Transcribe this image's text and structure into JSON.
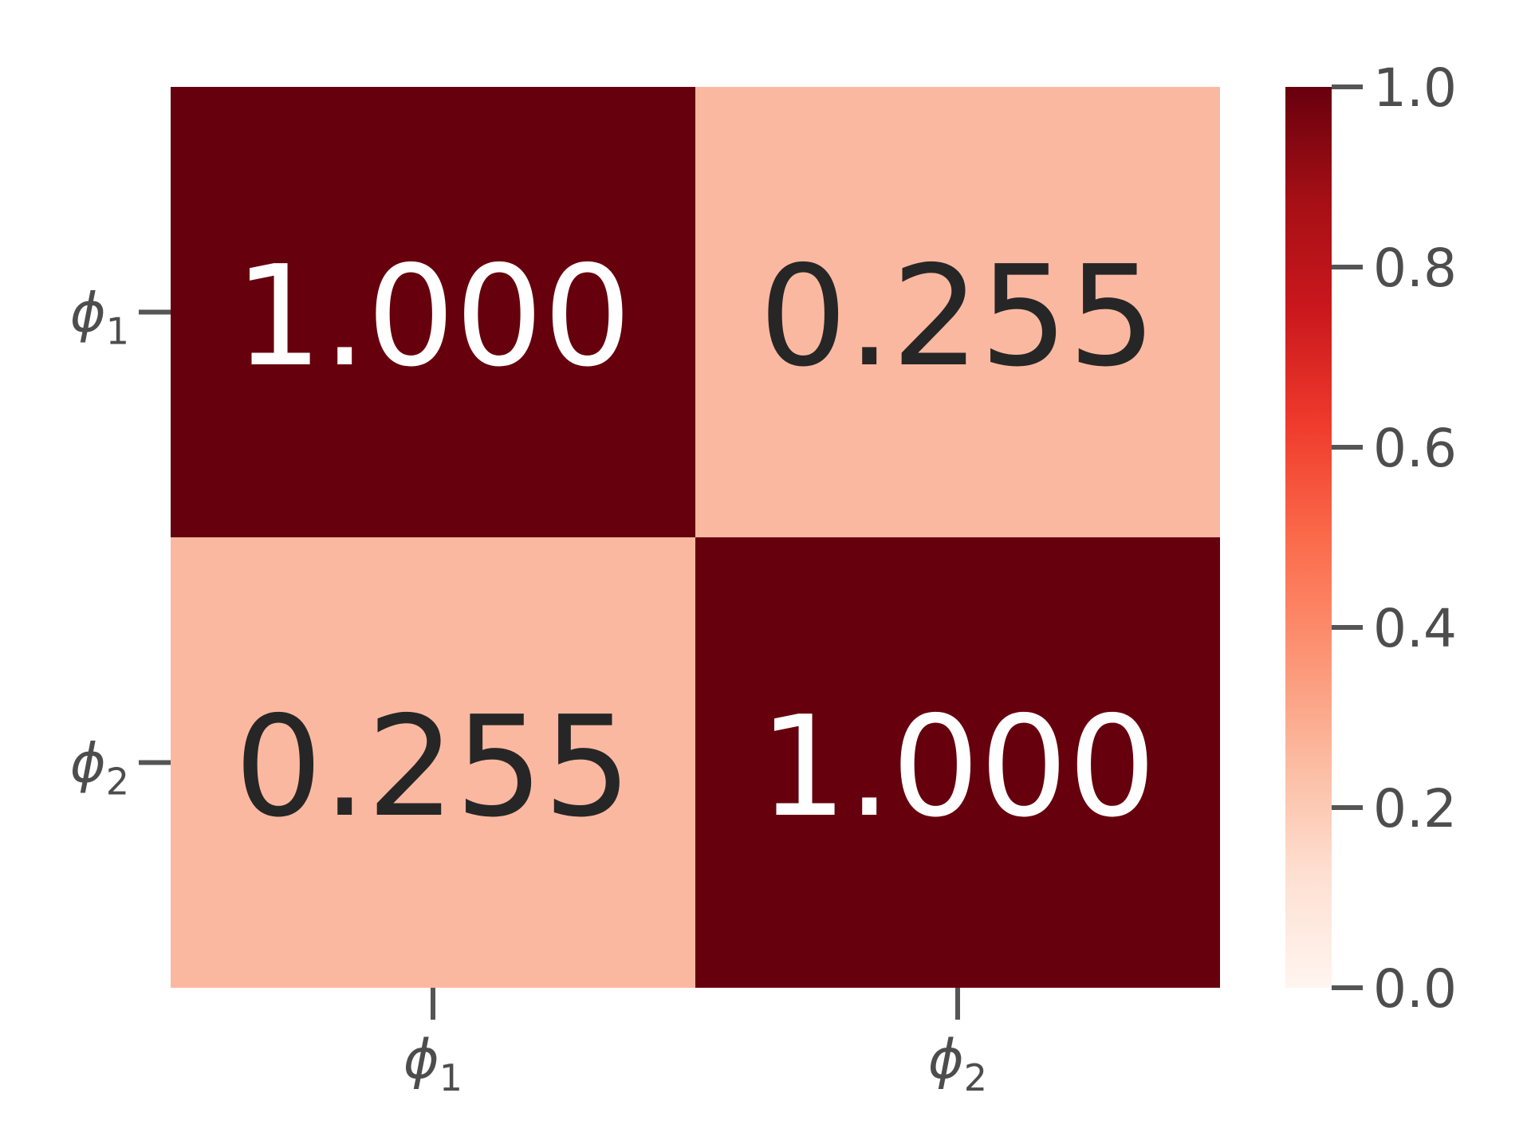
{
  "chart_data": {
    "type": "heatmap",
    "title": "",
    "rows": [
      {
        "symbol": "ϕ",
        "subscript": "1"
      },
      {
        "symbol": "ϕ",
        "subscript": "2"
      }
    ],
    "columns": [
      {
        "symbol": "ϕ",
        "subscript": "1"
      },
      {
        "symbol": "ϕ",
        "subscript": "2"
      }
    ],
    "values": [
      [
        1.0,
        0.255
      ],
      [
        0.255,
        1.0
      ]
    ],
    "value_labels": [
      [
        "1.000",
        "0.255"
      ],
      [
        "0.255",
        "1.000"
      ]
    ],
    "colorbar": {
      "colormap": "Reds",
      "range": [
        0.0,
        1.0
      ],
      "ticks": [
        {
          "value": 0.0,
          "label": "0.0"
        },
        {
          "value": 0.2,
          "label": "0.2"
        },
        {
          "value": 0.4,
          "label": "0.4"
        },
        {
          "value": 0.6,
          "label": "0.6"
        },
        {
          "value": 0.8,
          "label": "0.8"
        },
        {
          "value": 1.0,
          "label": "1.0"
        }
      ]
    },
    "colors": {
      "high": "#67000d",
      "mid_low": "#fbb8a0",
      "text_dark": "#262626",
      "text_light": "#ffffff",
      "tick_color": "#555555"
    }
  }
}
